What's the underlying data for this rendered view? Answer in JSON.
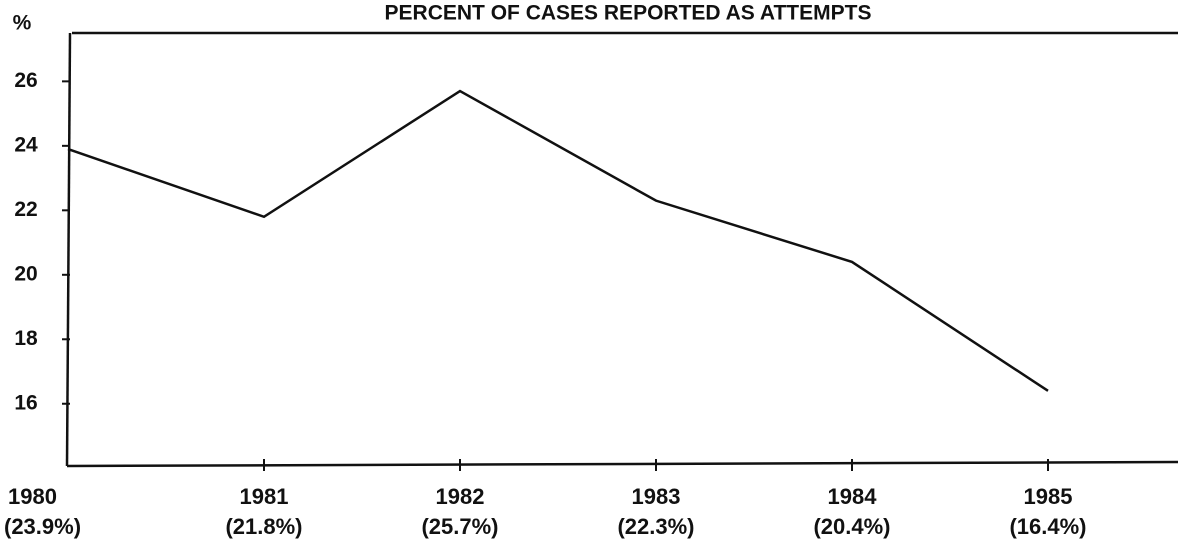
{
  "chart_data": {
    "type": "line",
    "title": "PERCENT OF CASES REPORTED AS ATTEMPTS",
    "y_label": "%",
    "categories": [
      "1980",
      "1981",
      "1982",
      "1983",
      "1984",
      "1985"
    ],
    "values": [
      23.9,
      21.8,
      25.7,
      22.3,
      20.4,
      16.4
    ],
    "value_labels": [
      "(23.9%)",
      "(21.8%)",
      "(25.7%)",
      "(22.3%)",
      "(20.4%)",
      "(16.4%)"
    ],
    "color": "#111111",
    "ylim": [
      14.1,
      27.5
    ],
    "yticks": [
      16,
      18,
      20,
      22,
      24,
      26
    ],
    "grid": false
  }
}
